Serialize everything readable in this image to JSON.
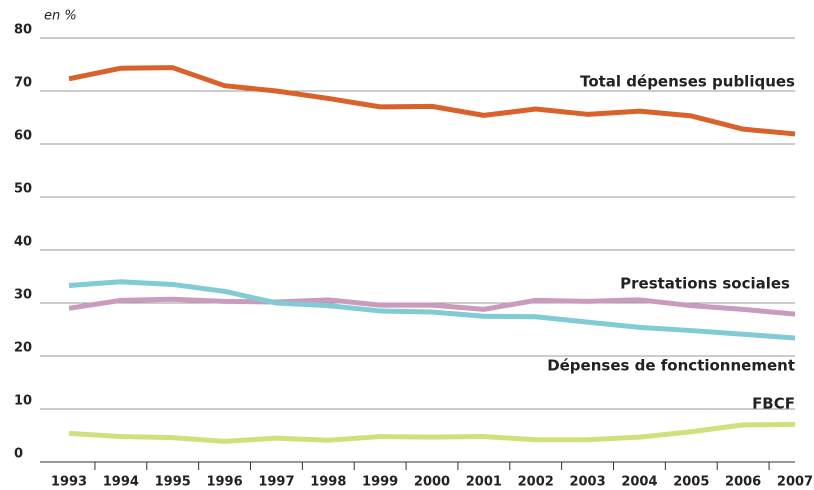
{
  "chart_data": {
    "type": "line",
    "y_label": "en %",
    "categories": [
      "1993",
      "1994",
      "1995",
      "1996",
      "1997",
      "1998",
      "1999",
      "2000",
      "2001",
      "2002",
      "2003",
      "2004",
      "2005",
      "2006",
      "2007"
    ],
    "series": [
      {
        "name": "Total dépenses publiques",
        "color": "#d9622b",
        "values": [
          72.3,
          74.3,
          74.4,
          71.0,
          70.0,
          68.6,
          67.0,
          67.1,
          65.4,
          66.6,
          65.6,
          66.2,
          65.3,
          62.8,
          61.9
        ]
      },
      {
        "name": "Prestations sociales",
        "color": "#c99bbd",
        "values": [
          29.0,
          30.5,
          30.7,
          30.3,
          30.2,
          30.6,
          29.6,
          29.6,
          28.8,
          30.5,
          30.3,
          30.6,
          29.5,
          28.8,
          27.9
        ]
      },
      {
        "name": "Dépenses de fonctionnement",
        "color": "#80cbd4",
        "values": [
          33.3,
          34.0,
          33.5,
          32.2,
          30.0,
          29.5,
          28.5,
          28.3,
          27.5,
          27.4,
          26.4,
          25.4,
          24.8,
          24.1,
          23.4
        ]
      },
      {
        "name": "FBCF",
        "color": "#d3df7a",
        "values": [
          5.4,
          4.8,
          4.6,
          3.9,
          4.5,
          4.1,
          4.8,
          4.7,
          4.8,
          4.2,
          4.2,
          4.7,
          5.7,
          7.0,
          7.1
        ]
      }
    ],
    "ylim": [
      0,
      80
    ],
    "yticks": [
      0,
      10,
      20,
      30,
      40,
      50,
      60,
      70,
      80
    ],
    "grid": true
  }
}
